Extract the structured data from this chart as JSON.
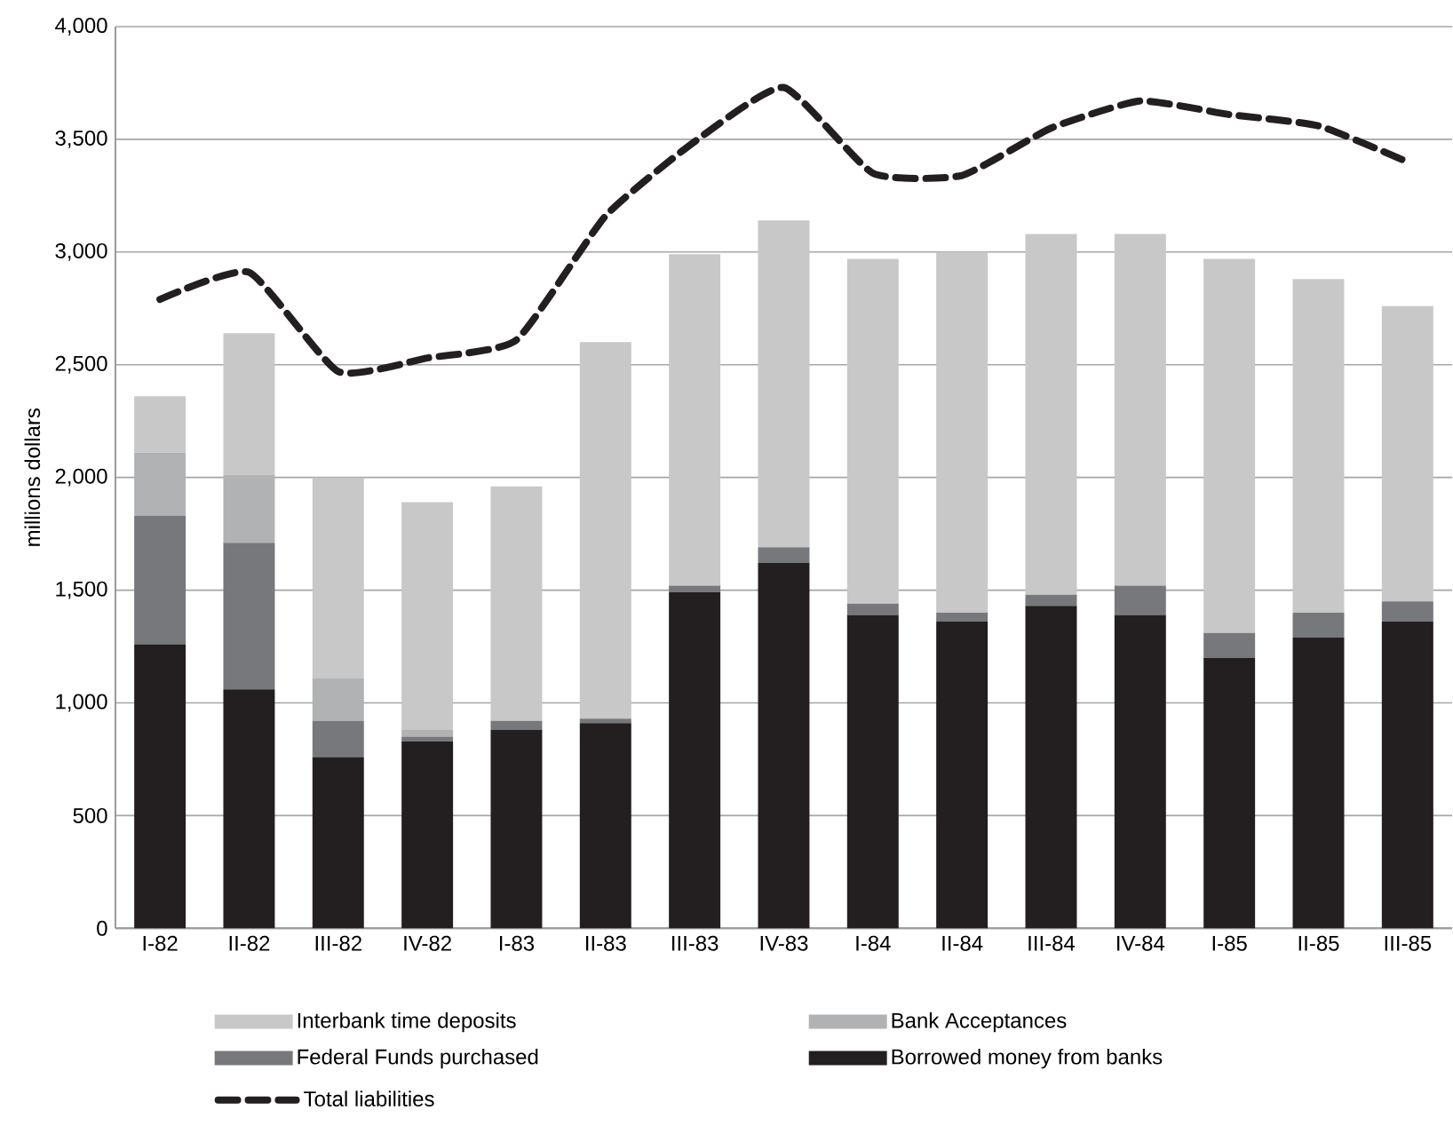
{
  "chart_data": {
    "type": "bar",
    "stacked": true,
    "ylabel": "millions dollars",
    "categories": [
      "I-82",
      "II-82",
      "III-82",
      "IV-82",
      "I-83",
      "II-83",
      "III-83",
      "IV-83",
      "I-84",
      "II-84",
      "III-84",
      "IV-84",
      "I-85",
      "II-85",
      "III-85"
    ],
    "series": [
      {
        "name": "Borrowed money from banks",
        "color": "#231f20",
        "values": [
          1260,
          1060,
          760,
          830,
          880,
          910,
          1490,
          1620,
          1390,
          1360,
          1430,
          1390,
          1200,
          1290,
          1360
        ]
      },
      {
        "name": "Federal Funds purchased",
        "color": "#77787b",
        "values": [
          570,
          650,
          160,
          20,
          40,
          20,
          30,
          70,
          50,
          40,
          50,
          130,
          110,
          110,
          90
        ]
      },
      {
        "name": "Bank Acceptances",
        "color": "#b1b2b4",
        "values": [
          280,
          300,
          190,
          30,
          null,
          null,
          0,
          0,
          0,
          0,
          0,
          0,
          0,
          0,
          0
        ]
      },
      {
        "name": "Interbank time deposits",
        "color": "#c8c8c8",
        "values": [
          250,
          630,
          890,
          1010,
          1040,
          1670,
          1470,
          1450,
          1530,
          1600,
          1600,
          1560,
          1660,
          1480,
          1310
        ]
      },
      {
        "name": "Total liabilities",
        "type": "line",
        "color": "#231f20",
        "line_style": "dashed",
        "marker": "none",
        "values": [
          2790,
          2910,
          2470,
          2530,
          2610,
          3160,
          3490,
          3730,
          3350,
          3340,
          3550,
          3670,
          3610,
          3560,
          3400
        ]
      }
    ],
    "ylim": [
      0,
      4000
    ],
    "yticks": [
      0,
      500,
      {
        "value": 1000,
        "label": "1,000"
      },
      {
        "value": 1500,
        "label": "1,500"
      },
      {
        "value": 2000,
        "label": "2,000"
      },
      {
        "value": 2500,
        "label": "2,500"
      },
      {
        "value": 3000,
        "label": "3,000"
      },
      {
        "value": 3500,
        "label": "3,500"
      },
      {
        "value": 4000,
        "label": "4,000"
      }
    ],
    "grid": "y",
    "legend": "bottom"
  }
}
